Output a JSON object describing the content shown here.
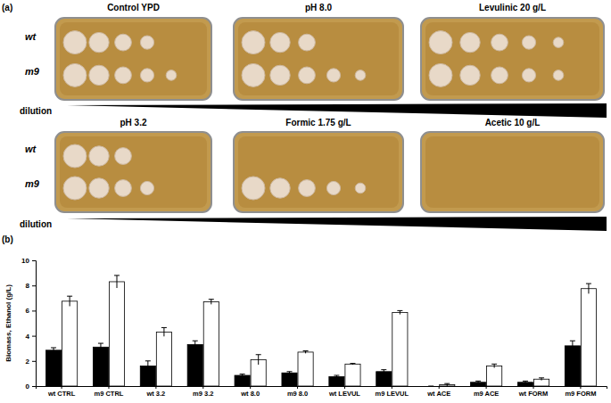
{
  "panel_a": {
    "label": "(a)",
    "strains": [
      "wt",
      "m9"
    ],
    "dilution_label": "dilution",
    "plates": [
      {
        "title": "Control  YPD",
        "spots": {
          "wt": 4,
          "m9": 5
        }
      },
      {
        "title": "pH 8.0",
        "spots": {
          "wt": 3,
          "m9": 5
        }
      },
      {
        "title": "Levulinic 20 g/L",
        "spots": {
          "wt": 5,
          "m9": 5
        }
      },
      {
        "title": "pH 3.2",
        "spots": {
          "wt": 3,
          "m9": 4
        }
      },
      {
        "title": "Formic 1.75 g/L",
        "spots": {
          "wt": 0,
          "m9": 5
        }
      },
      {
        "title": "Acetic 10 g/L",
        "spots": {
          "wt": 0,
          "m9": 0
        }
      }
    ]
  },
  "chart_data": {
    "type": "bar",
    "annotations": [
      "(b)"
    ],
    "y_label": "Biomass, Ethanol (g/L)",
    "categories": [
      "wt CTRL",
      "m9 CTRL",
      "wt 3.2",
      "m9 3.2",
      "wt 8.0",
      "m9 8.0",
      "wt LEVUL",
      "m9 LEVUL",
      "wt ACE",
      "m9 ACE",
      "wt FORM",
      "m9 FORM"
    ],
    "series": [
      {
        "color": "#000000",
        "values": [
          2.85,
          3.1,
          1.6,
          3.3,
          0.85,
          1.05,
          0.75,
          1.15,
          0.0,
          0.3,
          0.3,
          3.2
        ],
        "errors": [
          0.2,
          0.3,
          0.4,
          0.3,
          0.1,
          0.1,
          0.1,
          0.15,
          0.0,
          0.1,
          0.1,
          0.4
        ]
      },
      {
        "color": "#ffffff",
        "values": [
          6.75,
          8.3,
          4.3,
          6.7,
          2.1,
          2.7,
          1.75,
          5.85,
          0.1,
          1.6,
          0.55,
          7.75
        ],
        "errors": [
          0.4,
          0.5,
          0.35,
          0.2,
          0.4,
          0.1,
          0.05,
          0.15,
          0.1,
          0.15,
          0.1,
          0.4
        ]
      }
    ],
    "ylim": [
      0,
      10
    ],
    "yticks": [
      0,
      2,
      4,
      6,
      8,
      10
    ],
    "grid": false
  }
}
